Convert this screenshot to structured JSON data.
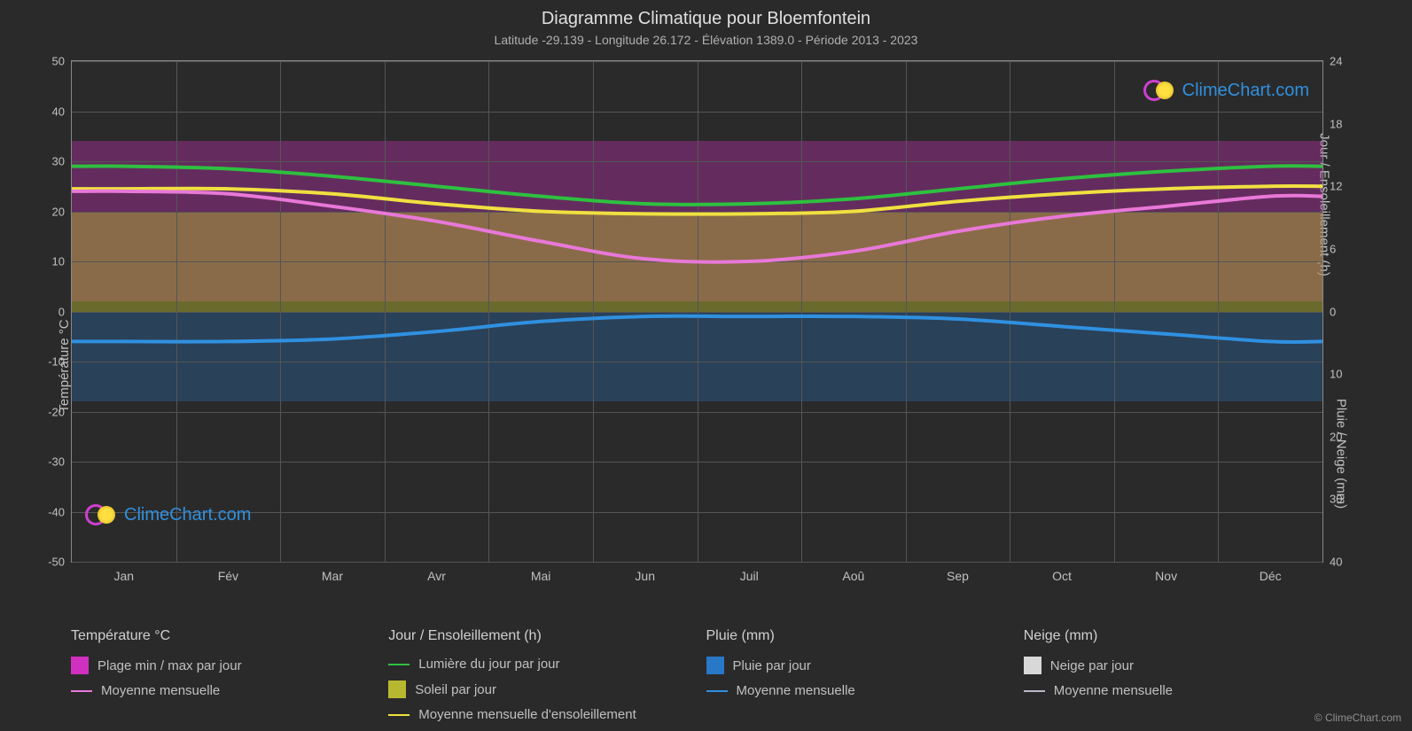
{
  "title": "Diagramme Climatique pour Bloemfontein",
  "subtitle": "Latitude -29.139 - Longitude 26.172 - Élévation 1389.0 - Période 2013 - 2023",
  "background_color": "#2a2a2a",
  "grid_color": "#555555",
  "text_color": "#c0c0c0",
  "axis_left": {
    "title": "Température °C",
    "min": -50,
    "max": 50,
    "ticks": [
      50,
      40,
      30,
      20,
      10,
      0,
      -10,
      -20,
      -30,
      -40,
      -50
    ]
  },
  "axis_right_top": {
    "title": "Jour / Ensoleillement (h)",
    "min": 0,
    "max": 24,
    "ticks": [
      24,
      18,
      12,
      6,
      0
    ]
  },
  "axis_right_bottom": {
    "title": "Pluie / Neige (mm)",
    "min": 0,
    "max": 40,
    "ticks": [
      0,
      10,
      20,
      30,
      40
    ]
  },
  "months": [
    "Jan",
    "Fév",
    "Mar",
    "Avr",
    "Mai",
    "Jun",
    "Juil",
    "Aoû",
    "Sep",
    "Oct",
    "Nov",
    "Déc"
  ],
  "series": {
    "temp_range_fill": {
      "label": "Plage min / max par jour",
      "color": "#d030c0",
      "top_approx_c": 34,
      "bottom_approx_c": 2
    },
    "temp_avg_line": {
      "label": "Moyenne mensuelle",
      "color": "#e878d8",
      "line_width": 2,
      "values_c": [
        24,
        23.5,
        21,
        18,
        14,
        10.5,
        10,
        12,
        16,
        19,
        21,
        23
      ]
    },
    "daylight_line": {
      "label": "Lumière du jour par jour",
      "color": "#2ec040",
      "line_width": 2,
      "values_c_equiv": [
        29,
        28.5,
        27,
        25,
        23,
        21.5,
        21.5,
        22.5,
        24.5,
        26.5,
        28,
        29
      ]
    },
    "sunshine_fill": {
      "label": "Soleil par jour",
      "color": "#b8b830",
      "top_approx_c": 20,
      "bottom_approx_c": 0
    },
    "sunshine_avg_line": {
      "label": "Moyenne mensuelle d'ensoleillement",
      "color": "#f0e040",
      "line_width": 2,
      "values_c_equiv": [
        24.5,
        24.5,
        23.5,
        21.5,
        20,
        19.5,
        19.5,
        20,
        22,
        23.5,
        24.5,
        25
      ]
    },
    "rain_fill": {
      "label": "Pluie par jour",
      "color": "#2878c8",
      "top_approx_c": 0,
      "bottom_approx_c": -18
    },
    "rain_avg_line": {
      "label": "Moyenne mensuelle",
      "color": "#3090e0",
      "line_width": 2,
      "values_c_equiv": [
        -6,
        -6,
        -5.5,
        -4,
        -2,
        -1,
        -1,
        -1,
        -1.5,
        -3,
        -4.5,
        -6
      ]
    },
    "snow_fill": {
      "label": "Neige par jour",
      "color": "#d8d8d8"
    },
    "snow_avg_line": {
      "label": "Moyenne mensuelle",
      "color": "#b8b8c8"
    }
  },
  "legend": {
    "col1_header": "Température °C",
    "col2_header": "Jour / Ensoleillement (h)",
    "col3_header": "Pluie (mm)",
    "col4_header": "Neige (mm)"
  },
  "watermark_text": "ClimeChart.com",
  "watermark_color": "#3090e0",
  "copyright": "© ClimeChart.com"
}
